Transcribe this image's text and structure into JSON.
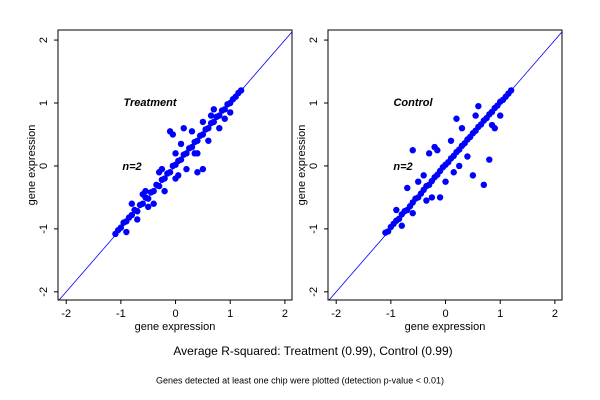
{
  "chart_data": [
    {
      "type": "scatter",
      "label": "Treatment",
      "note": "n=2",
      "x_label": "gene expression",
      "y_label": "gene expression",
      "color": "#0000ff",
      "diagonal": true,
      "xlim": [
        -2.15,
        2.13
      ],
      "ylim": [
        -2.13,
        2.16
      ],
      "xticks": [
        -2,
        -1,
        0,
        1,
        2
      ],
      "yticks": [
        -2,
        -1,
        0,
        1,
        2
      ],
      "x": [
        -1.1,
        -1.05,
        -1.0,
        -0.95,
        -0.9,
        -0.85,
        -0.8,
        -0.75,
        -0.7,
        -0.65,
        -0.6,
        -0.55,
        -0.5,
        -0.45,
        -0.4,
        -0.35,
        -0.3,
        -0.25,
        -0.2,
        -0.15,
        -0.1,
        -0.05,
        0,
        0.05,
        0.1,
        0.15,
        0.2,
        0.25,
        0.3,
        0.35,
        0.4,
        0.45,
        0.5,
        0.55,
        0.6,
        0.65,
        0.7,
        0.75,
        0.8,
        0.85,
        0.9,
        0.95,
        1.0,
        1.05,
        1.1,
        1.15,
        1.2,
        -0.6,
        -0.5,
        -0.3,
        -0.2,
        0,
        0,
        0.1,
        0.2,
        0.3,
        0.4,
        0.5,
        0.6,
        0.7,
        0.8,
        -0.8,
        -0.9,
        -0.1,
        -0.05,
        0.4,
        0.5,
        -0.4,
        0.15,
        -0.7,
        -0.55,
        -0.25,
        0.05,
        0.35,
        0.65,
        0.9,
        1.0
      ],
      "y": [
        -1.08,
        -1.02,
        -0.98,
        -0.9,
        -0.88,
        -0.82,
        -0.78,
        -0.7,
        -0.72,
        -0.62,
        -0.6,
        -0.5,
        -0.52,
        -0.42,
        -0.4,
        -0.3,
        -0.32,
        -0.22,
        -0.2,
        -0.12,
        -0.1,
        0,
        0.02,
        0.08,
        0.1,
        0.18,
        0.2,
        0.28,
        0.3,
        0.38,
        0.4,
        0.48,
        0.5,
        0.58,
        0.6,
        0.68,
        0.7,
        0.78,
        0.8,
        0.88,
        0.9,
        0.98,
        1.0,
        1.06,
        1.1,
        1.16,
        1.2,
        -0.45,
        -0.65,
        -0.1,
        -0.4,
        0.2,
        -0.2,
        0.35,
        -0.05,
        0.55,
        0.2,
        0.7,
        0.4,
        0.9,
        0.6,
        -0.6,
        -1.05,
        0.55,
        0.5,
        -0.1,
        -0.05,
        -0.6,
        0.6,
        -0.85,
        -0.4,
        -0.05,
        -0.15,
        0.2,
        0.8,
        0.75,
        0.85
      ]
    },
    {
      "type": "scatter",
      "label": "Control",
      "note": "n=2",
      "x_label": "gene expression",
      "y_label": "gene expression",
      "color": "#0000ff",
      "diagonal": true,
      "xlim": [
        -2.15,
        2.13
      ],
      "ylim": [
        -2.13,
        2.16
      ],
      "xticks": [
        -2,
        -1,
        0,
        1,
        2
      ],
      "yticks": [
        -2,
        -1,
        0,
        1,
        2
      ],
      "x": [
        -1.1,
        -1.05,
        -1.0,
        -0.95,
        -0.9,
        -0.85,
        -0.8,
        -0.75,
        -0.7,
        -0.65,
        -0.6,
        -0.55,
        -0.5,
        -0.45,
        -0.4,
        -0.35,
        -0.3,
        -0.25,
        -0.2,
        -0.15,
        -0.1,
        -0.05,
        0,
        0.05,
        0.1,
        0.15,
        0.2,
        0.25,
        0.3,
        0.35,
        0.4,
        0.45,
        0.5,
        0.55,
        0.6,
        0.65,
        0.7,
        0.75,
        0.8,
        0.85,
        0.9,
        0.95,
        1.0,
        1.05,
        1.1,
        1.15,
        1.2,
        -0.6,
        -0.3,
        0.5,
        0.7,
        0.8,
        -0.1,
        0.2,
        -0.7,
        0.9,
        0.3,
        -0.2,
        0.6,
        -0.5,
        -0.4,
        0,
        0.1,
        0.4,
        -0.8,
        -0.9,
        0.25,
        -0.35,
        0.55,
        -0.6,
        0.15,
        -0.15,
        0.85,
        1.0,
        -0.25
      ],
      "y": [
        -1.06,
        -1.04,
        -0.97,
        -0.92,
        -0.87,
        -0.84,
        -0.77,
        -0.72,
        -0.7,
        -0.64,
        -0.58,
        -0.52,
        -0.5,
        -0.44,
        -0.38,
        -0.32,
        -0.3,
        -0.24,
        -0.18,
        -0.14,
        -0.08,
        -0.02,
        0.02,
        0.06,
        0.12,
        0.16,
        0.22,
        0.26,
        0.32,
        0.36,
        0.42,
        0.46,
        0.52,
        0.56,
        0.62,
        0.66,
        0.72,
        0.76,
        0.82,
        0.86,
        0.92,
        0.96,
        1.02,
        1.05,
        1.1,
        1.15,
        1.2,
        0.25,
        0.2,
        -0.15,
        -0.3,
        0.1,
        -0.5,
        0.75,
        -0.35,
        0.6,
        0.6,
        0.3,
        0.95,
        -0.25,
        -0.15,
        -0.25,
        0.4,
        0.15,
        -0.95,
        -0.7,
        0.0,
        -0.55,
        0.8,
        -0.75,
        -0.1,
        0.25,
        0.65,
        0.8,
        -0.5
      ]
    }
  ],
  "caption": "Average R-squared: Treatment (0.99), Control (0.99)",
  "footnote": "Genes detected at least one chip were plotted (detection p-value < 0.01)"
}
